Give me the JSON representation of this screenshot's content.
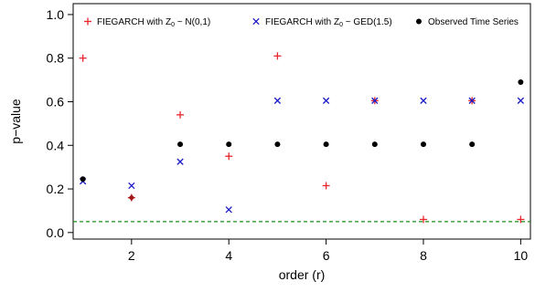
{
  "chart_data": {
    "type": "scatter",
    "xlabel": "order (r)",
    "ylabel": "p−value",
    "xlim": [
      0.8,
      10.2
    ],
    "ylim": [
      -0.03,
      1.05
    ],
    "x_ticks": [
      2,
      4,
      6,
      8,
      10
    ],
    "y_ticks": [
      0.0,
      0.2,
      0.4,
      0.6,
      0.8,
      1.0
    ],
    "x_tick_labels": [
      "2",
      "4",
      "6",
      "8",
      "10"
    ],
    "y_tick_labels": [
      "0.0",
      "0.2",
      "0.4",
      "0.6",
      "0.8",
      "1.0"
    ],
    "legend_position": "top",
    "reference_line": {
      "y": 0.05,
      "style": "dashed",
      "color": "#1a8c1a"
    },
    "series": [
      {
        "name": "FIEGARCH with Z₀ ~ N(0,1)",
        "legend_main": "FIEGARCH with Z",
        "legend_sub": "0",
        "legend_rest": " ~ N(0,1)",
        "marker": "plus",
        "color": "#e8262b",
        "x": [
          1,
          2,
          3,
          4,
          5,
          6,
          7,
          8,
          9,
          10
        ],
        "y": [
          0.8,
          0.16,
          0.54,
          0.35,
          0.81,
          0.215,
          0.605,
          0.06,
          0.605,
          0.06
        ]
      },
      {
        "name": "FIEGARCH with Z₀ ~ GED(1.5)",
        "legend_main": "FIEGARCH with Z",
        "legend_sub": "0",
        "legend_rest": " ~ GED(1.5)",
        "marker": "cross",
        "color": "#1a1ac8",
        "x": [
          1,
          2,
          3,
          4,
          5,
          6,
          7,
          8,
          9,
          10
        ],
        "y": [
          0.235,
          0.215,
          0.325,
          0.105,
          0.605,
          0.605,
          0.605,
          0.605,
          0.605,
          0.605
        ]
      },
      {
        "name": "Observed Time Series",
        "legend_main": "Observed Time Series",
        "legend_sub": "",
        "legend_rest": "",
        "marker": "dot",
        "color": "#000000",
        "x": [
          1,
          3,
          4,
          5,
          6,
          7,
          8,
          9,
          10
        ],
        "y": [
          0.245,
          0.405,
          0.405,
          0.405,
          0.405,
          0.405,
          0.405,
          0.405,
          0.69
        ]
      }
    ],
    "highlight_points": [
      {
        "x": 2,
        "y": 0.16,
        "marker": "diamond",
        "color": "#a01818"
      }
    ]
  }
}
